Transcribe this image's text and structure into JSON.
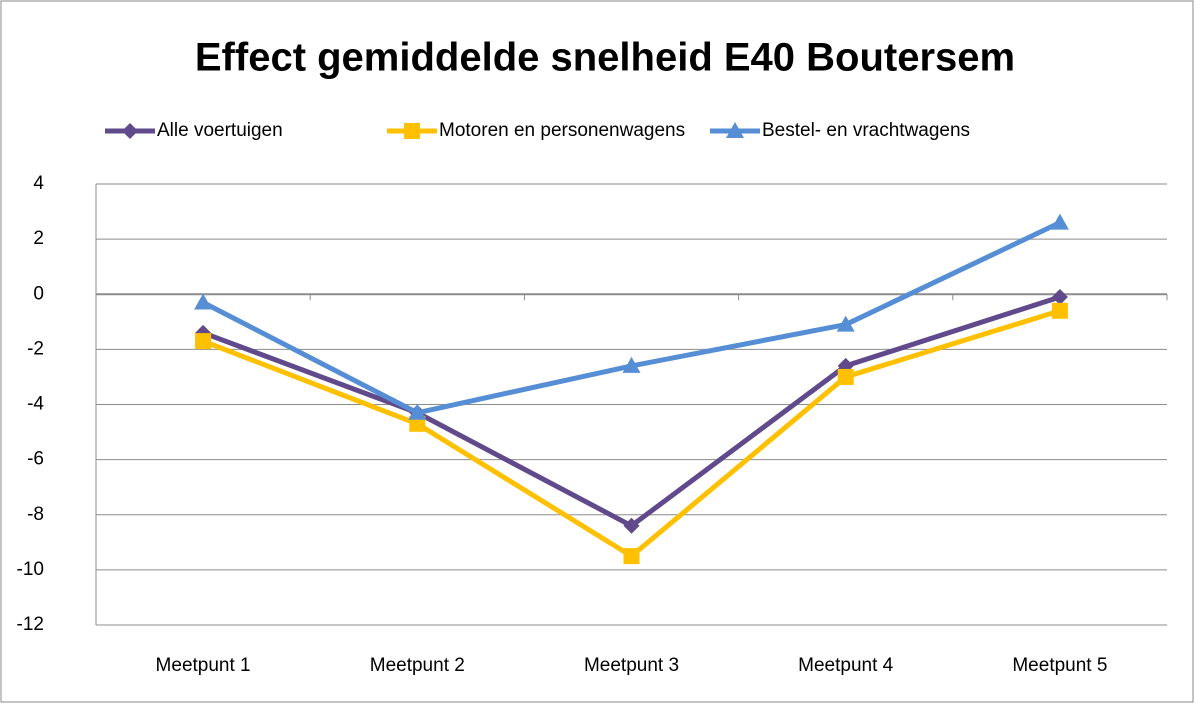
{
  "chart_data": {
    "type": "line",
    "title": "Effect gemiddelde snelheid E40 Boutersem",
    "categories": [
      "Meetpunt 1",
      "Meetpunt 2",
      "Meetpunt 3",
      "Meetpunt 4",
      "Meetpunt 5"
    ],
    "series": [
      {
        "name": "Alle voertuigen",
        "color": "#604a8b",
        "marker": "diamond",
        "values": [
          -1.4,
          -4.3,
          -8.4,
          -2.6,
          -0.1
        ]
      },
      {
        "name": "Motoren en personenwagens",
        "color": "#ffc000",
        "marker": "square",
        "values": [
          -1.7,
          -4.7,
          -9.5,
          -3.0,
          -0.6
        ]
      },
      {
        "name": "Bestel- en vrachtwagens",
        "color": "#558ed5",
        "marker": "triangle",
        "values": [
          -0.3,
          -4.3,
          -2.6,
          -1.1,
          2.6
        ]
      }
    ],
    "ylim": [
      -12,
      4
    ],
    "yticks": [
      -12,
      -10,
      -8,
      -6,
      -4,
      -2,
      0,
      2,
      4
    ],
    "grid": true,
    "legend": "top"
  }
}
